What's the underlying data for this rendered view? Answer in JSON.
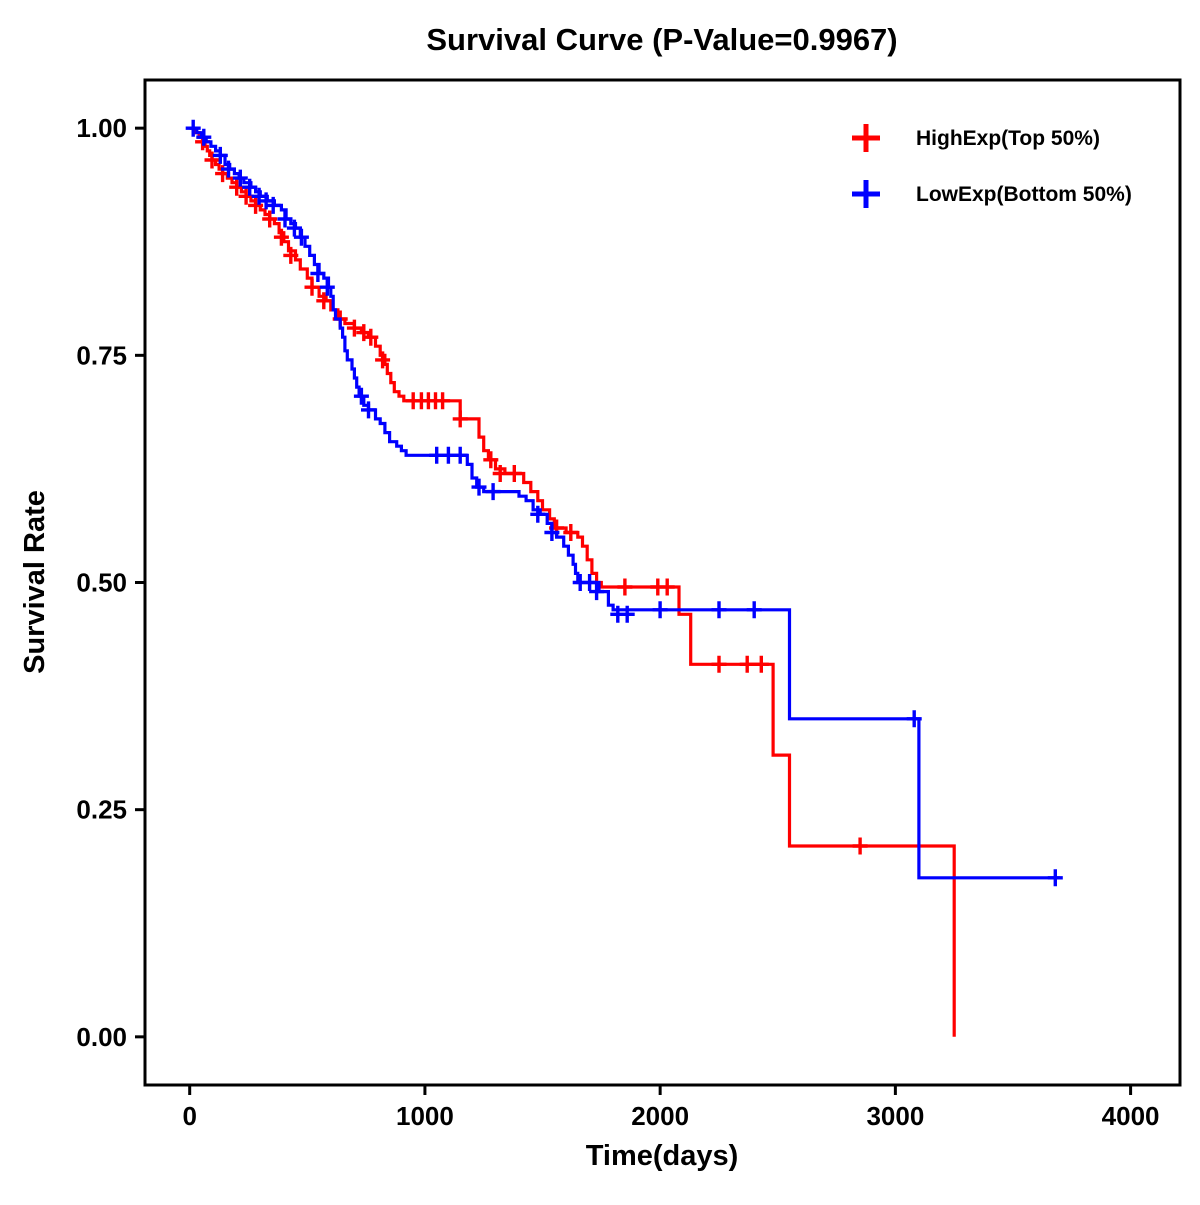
{
  "chart_data": {
    "type": "line",
    "subtype": "kaplan-meier-step",
    "title": "Survival Curve (P-Value=0.9967)",
    "xlabel": "Time(days)",
    "ylabel": "Survival Rate",
    "xlim": [
      -190,
      4210
    ],
    "ylim": [
      -0.053,
      1.053
    ],
    "grid": false,
    "legend_position": "top-right-inside",
    "xticks": {
      "values": [
        0,
        1000,
        2000,
        3000,
        4000
      ],
      "labels": [
        "0",
        "1000",
        "2000",
        "3000",
        "4000"
      ]
    },
    "yticks": {
      "values": [
        0.0,
        0.25,
        0.5,
        0.75,
        1.0
      ],
      "labels": [
        "0.00",
        "0.25",
        "0.50",
        "0.75",
        "1.00"
      ]
    },
    "legend": [
      {
        "label": "HighExp(Top 50%)",
        "color": "#FF0000",
        "symbol": "plus"
      },
      {
        "label": "LowExp(Bottom 50%)",
        "color": "#0000FF",
        "symbol": "plus"
      }
    ],
    "series": [
      {
        "name": "HighExp(Top 50%)",
        "color": "#FF0000",
        "step_points": [
          [
            0,
            1.0
          ],
          [
            25,
            0.995
          ],
          [
            40,
            0.99
          ],
          [
            55,
            0.985
          ],
          [
            65,
            0.98
          ],
          [
            75,
            0.975
          ],
          [
            85,
            0.97
          ],
          [
            95,
            0.965
          ],
          [
            110,
            0.96
          ],
          [
            125,
            0.955
          ],
          [
            140,
            0.95
          ],
          [
            160,
            0.945
          ],
          [
            180,
            0.94
          ],
          [
            200,
            0.935
          ],
          [
            220,
            0.93
          ],
          [
            240,
            0.925
          ],
          [
            260,
            0.92
          ],
          [
            280,
            0.915
          ],
          [
            300,
            0.91
          ],
          [
            320,
            0.905
          ],
          [
            340,
            0.9
          ],
          [
            360,
            0.895
          ],
          [
            380,
            0.885
          ],
          [
            400,
            0.875
          ],
          [
            420,
            0.865
          ],
          [
            450,
            0.855
          ],
          [
            470,
            0.845
          ],
          [
            500,
            0.835
          ],
          [
            520,
            0.825
          ],
          [
            550,
            0.815
          ],
          [
            580,
            0.81
          ],
          [
            600,
            0.8
          ],
          [
            630,
            0.79
          ],
          [
            660,
            0.785
          ],
          [
            700,
            0.78
          ],
          [
            730,
            0.775
          ],
          [
            760,
            0.77
          ],
          [
            790,
            0.76
          ],
          [
            810,
            0.75
          ],
          [
            830,
            0.74
          ],
          [
            840,
            0.73
          ],
          [
            855,
            0.72
          ],
          [
            870,
            0.71
          ],
          [
            890,
            0.705
          ],
          [
            910,
            0.7
          ],
          [
            1150,
            0.68
          ],
          [
            1230,
            0.66
          ],
          [
            1250,
            0.645
          ],
          [
            1270,
            0.635
          ],
          [
            1300,
            0.625
          ],
          [
            1340,
            0.62
          ],
          [
            1420,
            0.61
          ],
          [
            1450,
            0.6
          ],
          [
            1480,
            0.59
          ],
          [
            1500,
            0.58
          ],
          [
            1530,
            0.57
          ],
          [
            1550,
            0.56
          ],
          [
            1600,
            0.555
          ],
          [
            1650,
            0.55
          ],
          [
            1670,
            0.54
          ],
          [
            1690,
            0.525
          ],
          [
            1710,
            0.51
          ],
          [
            1730,
            0.5
          ],
          [
            1750,
            0.495
          ],
          [
            2080,
            0.465
          ],
          [
            2130,
            0.41
          ],
          [
            2480,
            0.31
          ],
          [
            2550,
            0.21
          ],
          [
            3250,
            0.0
          ]
        ],
        "censor_marks": [
          [
            55,
            0.985
          ],
          [
            95,
            0.965
          ],
          [
            140,
            0.95
          ],
          [
            200,
            0.935
          ],
          [
            240,
            0.925
          ],
          [
            280,
            0.915
          ],
          [
            340,
            0.9
          ],
          [
            390,
            0.88
          ],
          [
            430,
            0.86
          ],
          [
            520,
            0.825
          ],
          [
            570,
            0.81
          ],
          [
            640,
            0.79
          ],
          [
            700,
            0.78
          ],
          [
            740,
            0.775
          ],
          [
            770,
            0.77
          ],
          [
            820,
            0.745
          ],
          [
            950,
            0.7
          ],
          [
            985,
            0.7
          ],
          [
            1015,
            0.7
          ],
          [
            1045,
            0.7
          ],
          [
            1075,
            0.7
          ],
          [
            1150,
            0.68
          ],
          [
            1280,
            0.635
          ],
          [
            1320,
            0.62
          ],
          [
            1380,
            0.62
          ],
          [
            1560,
            0.56
          ],
          [
            1620,
            0.555
          ],
          [
            1850,
            0.495
          ],
          [
            1990,
            0.495
          ],
          [
            2030,
            0.495
          ],
          [
            2250,
            0.41
          ],
          [
            2370,
            0.41
          ],
          [
            2430,
            0.41
          ],
          [
            2850,
            0.21
          ]
        ]
      },
      {
        "name": "LowExp(Bottom 50%)",
        "color": "#0000FF",
        "step_points": [
          [
            0,
            1.0
          ],
          [
            30,
            0.995
          ],
          [
            50,
            0.99
          ],
          [
            70,
            0.985
          ],
          [
            90,
            0.98
          ],
          [
            110,
            0.975
          ],
          [
            130,
            0.97
          ],
          [
            150,
            0.96
          ],
          [
            170,
            0.955
          ],
          [
            190,
            0.95
          ],
          [
            210,
            0.945
          ],
          [
            230,
            0.94
          ],
          [
            260,
            0.935
          ],
          [
            280,
            0.93
          ],
          [
            300,
            0.925
          ],
          [
            330,
            0.92
          ],
          [
            360,
            0.915
          ],
          [
            390,
            0.91
          ],
          [
            410,
            0.9
          ],
          [
            430,
            0.895
          ],
          [
            450,
            0.89
          ],
          [
            470,
            0.88
          ],
          [
            490,
            0.87
          ],
          [
            510,
            0.86
          ],
          [
            530,
            0.85
          ],
          [
            550,
            0.84
          ],
          [
            570,
            0.835
          ],
          [
            590,
            0.825
          ],
          [
            600,
            0.815
          ],
          [
            610,
            0.8
          ],
          [
            620,
            0.79
          ],
          [
            640,
            0.78
          ],
          [
            650,
            0.77
          ],
          [
            660,
            0.755
          ],
          [
            670,
            0.745
          ],
          [
            690,
            0.735
          ],
          [
            700,
            0.725
          ],
          [
            710,
            0.715
          ],
          [
            720,
            0.705
          ],
          [
            740,
            0.695
          ],
          [
            760,
            0.69
          ],
          [
            790,
            0.68
          ],
          [
            810,
            0.675
          ],
          [
            830,
            0.665
          ],
          [
            850,
            0.655
          ],
          [
            880,
            0.65
          ],
          [
            900,
            0.645
          ],
          [
            920,
            0.64
          ],
          [
            1180,
            0.63
          ],
          [
            1200,
            0.615
          ],
          [
            1220,
            0.605
          ],
          [
            1250,
            0.6
          ],
          [
            1400,
            0.595
          ],
          [
            1430,
            0.59
          ],
          [
            1460,
            0.58
          ],
          [
            1490,
            0.575
          ],
          [
            1520,
            0.565
          ],
          [
            1540,
            0.555
          ],
          [
            1560,
            0.55
          ],
          [
            1590,
            0.54
          ],
          [
            1610,
            0.53
          ],
          [
            1630,
            0.52
          ],
          [
            1640,
            0.51
          ],
          [
            1650,
            0.5
          ],
          [
            1740,
            0.49
          ],
          [
            1780,
            0.475
          ],
          [
            1800,
            0.47
          ],
          [
            2550,
            0.35
          ],
          [
            3100,
            0.175
          ],
          [
            3700,
            0.175
          ]
        ],
        "censor_marks": [
          [
            15,
            1.0
          ],
          [
            60,
            0.99
          ],
          [
            130,
            0.97
          ],
          [
            165,
            0.955
          ],
          [
            215,
            0.945
          ],
          [
            255,
            0.935
          ],
          [
            295,
            0.925
          ],
          [
            325,
            0.92
          ],
          [
            355,
            0.915
          ],
          [
            405,
            0.9
          ],
          [
            445,
            0.89
          ],
          [
            475,
            0.88
          ],
          [
            545,
            0.84
          ],
          [
            585,
            0.825
          ],
          [
            730,
            0.705
          ],
          [
            760,
            0.69
          ],
          [
            1050,
            0.64
          ],
          [
            1100,
            0.64
          ],
          [
            1150,
            0.64
          ],
          [
            1230,
            0.605
          ],
          [
            1290,
            0.6
          ],
          [
            1480,
            0.575
          ],
          [
            1540,
            0.555
          ],
          [
            1660,
            0.5
          ],
          [
            1700,
            0.5
          ],
          [
            1730,
            0.49
          ],
          [
            1820,
            0.465
          ],
          [
            1860,
            0.465
          ],
          [
            2000,
            0.47
          ],
          [
            2250,
            0.47
          ],
          [
            2400,
            0.47
          ],
          [
            3080,
            0.35
          ],
          [
            3680,
            0.175
          ]
        ]
      }
    ]
  }
}
